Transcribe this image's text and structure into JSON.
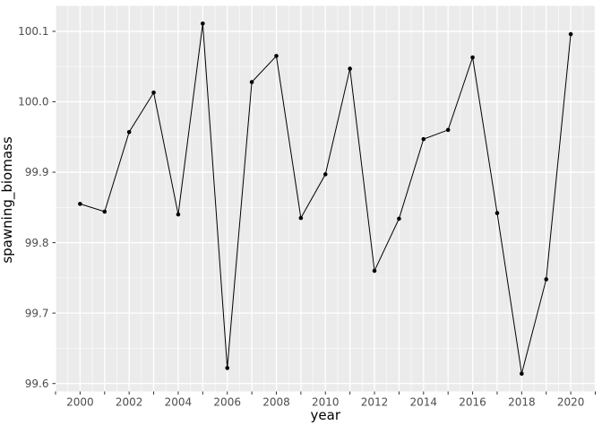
{
  "chart_data": {
    "type": "line",
    "title": "",
    "xlabel": "year",
    "ylabel": "spawning_biomass",
    "x": [
      2000,
      2001,
      2002,
      2003,
      2004,
      2005,
      2006,
      2007,
      2008,
      2009,
      2010,
      2011,
      2012,
      2013,
      2014,
      2015,
      2016,
      2017,
      2018,
      2019,
      2020
    ],
    "y": [
      99.855,
      99.844,
      99.957,
      100.013,
      99.84,
      100.111,
      99.622,
      100.028,
      100.065,
      99.835,
      99.897,
      100.047,
      99.76,
      99.834,
      99.947,
      99.96,
      100.063,
      99.842,
      99.614,
      99.748,
      100.096
    ],
    "xlim": [
      1999,
      2021
    ],
    "ylim": [
      99.5888,
      100.1362
    ],
    "x_axis": {
      "tick_values": [
        1999,
        2000,
        2001,
        2002,
        2003,
        2004,
        2005,
        2006,
        2007,
        2008,
        2009,
        2010,
        2011,
        2012,
        2013,
        2014,
        2015,
        2016,
        2017,
        2018,
        2019,
        2020,
        2021
      ],
      "label_values": [
        2000,
        2002,
        2004,
        2006,
        2008,
        2010,
        2012,
        2014,
        2016,
        2018,
        2020
      ],
      "labels": [
        "2000",
        "2002",
        "2004",
        "2006",
        "2008",
        "2010",
        "2012",
        "2014",
        "2016",
        "2018",
        "2020"
      ]
    },
    "y_axis": {
      "tick_values": [
        99.6,
        99.7,
        99.8,
        99.9,
        100.0,
        100.1
      ],
      "labels": [
        "99.6",
        "99.7",
        "99.8",
        "99.9",
        "100.0",
        "100.1"
      ]
    },
    "grid": {
      "x_minor": [
        1999.5,
        2000.5,
        2001.5,
        2002.5,
        2003.5,
        2004.5,
        2005.5,
        2006.5,
        2007.5,
        2008.5,
        2009.5,
        2010.5,
        2011.5,
        2012.5,
        2013.5,
        2014.5,
        2015.5,
        2016.5,
        2017.5,
        2018.5,
        2019.5,
        2020.5
      ],
      "y_minor": [
        99.65,
        99.75,
        99.85,
        99.95,
        100.05
      ],
      "grid_on": true
    },
    "legend": {
      "shown": false
    },
    "style": {
      "figure_bg": "#FFFFFF",
      "panel_bg": "#EBEBEB",
      "grid_major_color": "#FFFFFF",
      "grid_minor_color": "#FFFFFF",
      "line_color": "#000000",
      "point_color": "#000000",
      "tick_color": "#333333",
      "axis_text_color": "#4D4D4D",
      "axis_title_color": "#000000"
    }
  }
}
